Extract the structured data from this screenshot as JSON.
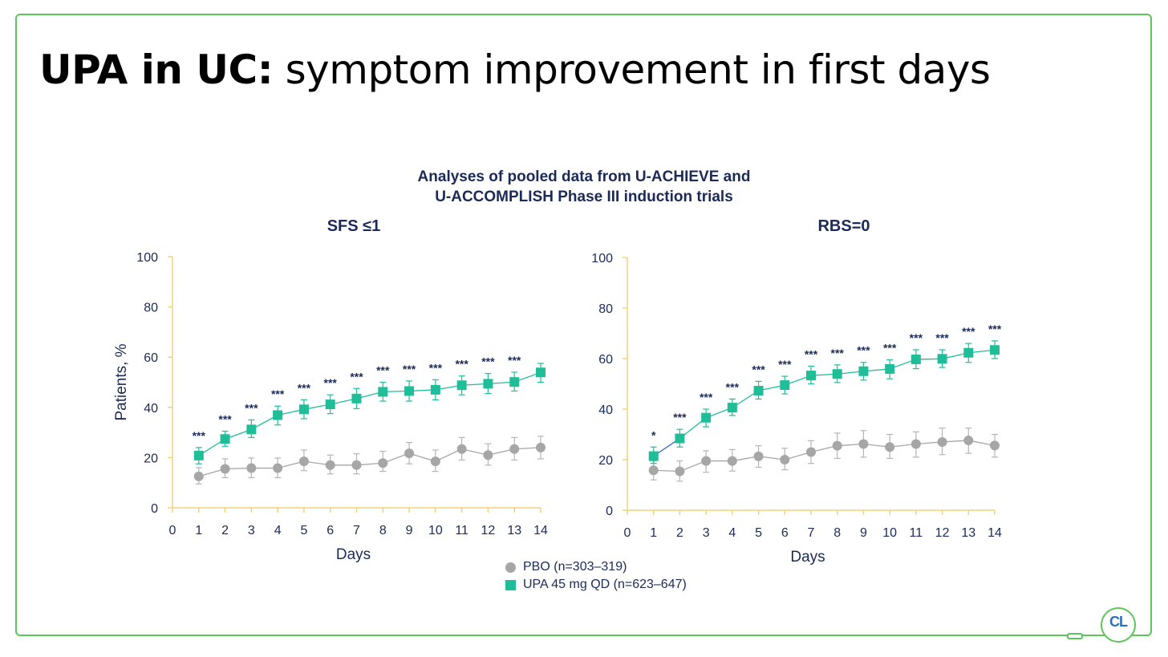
{
  "slide": {
    "title_bold": "UPA in UC:",
    "title_rest": " symptom improvement in first days",
    "subtitle_line1": "Analyses of pooled data from U-ACHIEVE and",
    "subtitle_line2": "U-ACCOMPLISH Phase III induction trials",
    "logo_text": "CL"
  },
  "legend": {
    "pbo": "PBO (n=303–319)",
    "upa": "UPA 45 mg QD (n=623–647)"
  },
  "colors": {
    "frame": "#5cc65a",
    "axis": "#f2d27a",
    "upa": "#1fbe99",
    "pbo": "#a6a6a6",
    "text": "#1b2a57",
    "upa_line_start": "#3b6fbf"
  },
  "chart_data": [
    {
      "type": "line",
      "title": "SFS ≤1",
      "xlabel": "Days",
      "ylabel": "Patients, %",
      "xlim": [
        0,
        14
      ],
      "ylim": [
        0,
        100
      ],
      "x_ticks": [
        0,
        1,
        2,
        3,
        4,
        5,
        6,
        7,
        8,
        9,
        10,
        11,
        12,
        13,
        14
      ],
      "y_ticks": [
        0,
        20,
        40,
        60,
        80,
        100
      ],
      "x": [
        1,
        2,
        3,
        4,
        5,
        6,
        7,
        8,
        9,
        10,
        11,
        12,
        13,
        14
      ],
      "series": [
        {
          "name": "PBO (n=303–319)",
          "marker": "circle",
          "values": [
            12.5,
            15.5,
            15.8,
            15.8,
            18.5,
            17,
            17,
            17.8,
            21.7,
            18.5,
            23.4,
            21,
            23.4,
            24
          ],
          "error_low": [
            9.5,
            12,
            12,
            12,
            14.8,
            13.5,
            13.5,
            14.5,
            17.5,
            14.5,
            19,
            17,
            19,
            19.5
          ],
          "error_high": [
            16,
            19.5,
            19.8,
            19.8,
            23,
            21,
            21.5,
            22.5,
            26,
            23,
            28,
            25.5,
            28,
            28.5
          ]
        },
        {
          "name": "UPA 45 mg QD (n=623–647)",
          "marker": "square",
          "values": [
            20.8,
            27.4,
            31.2,
            36.9,
            39.2,
            41.2,
            43.5,
            46.2,
            46.5,
            47,
            48.8,
            49.4,
            50.1,
            53.9
          ],
          "error_low": [
            17.5,
            24.5,
            28,
            33,
            35.5,
            37.5,
            39.5,
            42.5,
            42.5,
            43,
            45,
            45.5,
            46.5,
            50
          ],
          "error_high": [
            24,
            30.5,
            35,
            40.5,
            43,
            45,
            47.5,
            50,
            50.5,
            51,
            52.5,
            53.5,
            54,
            57.5
          ]
        }
      ],
      "significance": [
        "***",
        "***",
        "***",
        "***",
        "***",
        "***",
        "***",
        "***",
        "***",
        "***",
        "***",
        "***",
        "***",
        ""
      ]
    },
    {
      "type": "line",
      "title": "RBS=0",
      "xlabel": "Days",
      "ylabel": "",
      "xlim": [
        0,
        14
      ],
      "ylim": [
        0,
        100
      ],
      "x_ticks": [
        0,
        1,
        2,
        3,
        4,
        5,
        6,
        7,
        8,
        9,
        10,
        11,
        12,
        13,
        14
      ],
      "y_ticks": [
        0,
        20,
        40,
        60,
        80,
        100
      ],
      "x": [
        1,
        2,
        3,
        4,
        5,
        6,
        7,
        8,
        9,
        10,
        11,
        12,
        13,
        14
      ],
      "series": [
        {
          "name": "PBO (n=303–319)",
          "marker": "circle",
          "values": [
            15.8,
            15.4,
            19.5,
            19.5,
            21.3,
            20,
            23,
            25.5,
            26.2,
            25,
            26.2,
            27,
            27.6,
            25.6
          ],
          "error_low": [
            12,
            11.5,
            15,
            15.5,
            17,
            16,
            18.5,
            20.5,
            21,
            20.5,
            21,
            22,
            22.5,
            21
          ],
          "error_high": [
            19.5,
            19.5,
            23.5,
            24,
            25.5,
            24.5,
            27.5,
            30.5,
            31.5,
            30,
            31,
            32.5,
            32.5,
            30
          ]
        },
        {
          "name": "UPA 45 mg QD (n=623–647)",
          "marker": "square",
          "values": [
            21.4,
            28.4,
            36.6,
            40.6,
            47.3,
            49.5,
            53.3,
            53.9,
            55,
            55.9,
            59.7,
            59.9,
            62.3,
            63.4
          ],
          "error_low": [
            18.5,
            25,
            33,
            37.5,
            44,
            46,
            50,
            50.5,
            51.5,
            52,
            56,
            56.5,
            58.5,
            60
          ],
          "error_high": [
            25,
            32,
            40,
            44,
            51,
            53,
            57,
            57.5,
            58.5,
            59.5,
            63.5,
            63.5,
            66,
            67
          ]
        }
      ],
      "significance": [
        "*",
        "***",
        "***",
        "***",
        "***",
        "***",
        "***",
        "***",
        "***",
        "***",
        "***",
        "***",
        "***",
        "***"
      ]
    }
  ]
}
